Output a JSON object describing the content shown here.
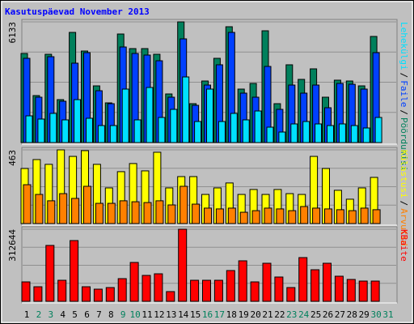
{
  "title": "Kasutuspäevad November 2013",
  "legend_separator": "/",
  "chart_data": [
    {
      "type": "bar",
      "ylim": [
        0,
        6133
      ],
      "yticks": [
        6133
      ],
      "series": [
        {
          "name": "Pöördumisi",
          "color": "#00805c",
          "values": [
            4528,
            2388,
            4487,
            2182,
            5598,
            4651,
            2881,
            2017,
            5516,
            4775,
            4775,
            4487,
            2470,
            6133,
            1976,
            3128,
            4281,
            5886,
            2717,
            3005,
            5680,
            1976,
            3952,
            3211,
            3746,
            2305,
            3170,
            3128,
            2881,
            5393,
            null
          ]
        },
        {
          "name": "Faile",
          "color": "#0040ff",
          "values": [
            4281,
            2305,
            4363,
            2100,
            4034,
            4569,
            2634,
            1976,
            4857,
            4528,
            4446,
            4157,
            2305,
            5269,
            1893,
            2922,
            3952,
            5598,
            2511,
            2305,
            3869,
            1688,
            2922,
            2511,
            2922,
            1770,
            3005,
            2963,
            2717,
            4569,
            null
          ]
        },
        {
          "name": "Lehekülgi",
          "color": "#00e0ff",
          "values": [
            1358,
            1194,
            1482,
            1153,
            2182,
            1235,
            864,
            864,
            2717,
            1153,
            2799,
            1276,
            1688,
            3334,
            1070,
            2717,
            1070,
            1482,
            1153,
            1605,
            782,
            535,
            947,
            1070,
            947,
            864,
            947,
            864,
            741,
            1276,
            null
          ]
        }
      ]
    },
    {
      "type": "bar",
      "ylim": [
        0,
        463
      ],
      "yticks": [
        463
      ],
      "series": [
        {
          "name": "Külastusi",
          "color": "#ffff00",
          "values": [
            346,
            402,
            372,
            463,
            422,
            458,
            372,
            224,
            326,
            377,
            331,
            448,
            224,
            295,
            295,
            183,
            224,
            255,
            183,
            214,
            183,
            214,
            188,
            183,
            422,
            346,
            209,
            153,
            224,
            290,
            null
          ]
        },
        {
          "name": "Arvutid",
          "color": "#ff8000",
          "values": [
            244,
            183,
            143,
            188,
            158,
            234,
            127,
            127,
            143,
            137,
            132,
            143,
            117,
            234,
            122,
            97,
            92,
            97,
            71,
            81,
            97,
            92,
            81,
            107,
            97,
            92,
            87,
            81,
            97,
            87,
            null
          ]
        }
      ]
    },
    {
      "type": "bar",
      "ylim": [
        0,
        312644
      ],
      "yticks": [
        312644
      ],
      "categories": [
        "1",
        "2",
        "3",
        "4",
        "5",
        "6",
        "7",
        "8",
        "9",
        "10",
        "11",
        "12",
        "13",
        "14",
        "15",
        "16",
        "17",
        "18",
        "19",
        "20",
        "21",
        "22",
        "23",
        "24",
        "25",
        "26",
        "27",
        "28",
        "29",
        "30",
        "31"
      ],
      "category_colors": [
        "#000000",
        "#00805c",
        "#00805c",
        "#000000",
        "#000000",
        "#000000",
        "#000000",
        "#000000",
        "#00805c",
        "#00805c",
        "#000000",
        "#000000",
        "#000000",
        "#000000",
        "#000000",
        "#00805c",
        "#00805c",
        "#000000",
        "#000000",
        "#000000",
        "#000000",
        "#000000",
        "#00805c",
        "#00805c",
        "#000000",
        "#000000",
        "#000000",
        "#000000",
        "#000000",
        "#00805c",
        "#00805c"
      ],
      "series": [
        {
          "name": "KBaite",
          "color": "#ff0000",
          "values": [
            84300,
            63200,
            242400,
            91300,
            263500,
            63200,
            52700,
            59700,
            98400,
            168600,
            112400,
            119400,
            42200,
            312644,
            91300,
            91300,
            91300,
            133500,
            175700,
            84300,
            165100,
            105400,
            59700,
            189700,
            137000,
            165100,
            108900,
            94900,
            87800,
            87800,
            null
          ]
        }
      ]
    }
  ]
}
